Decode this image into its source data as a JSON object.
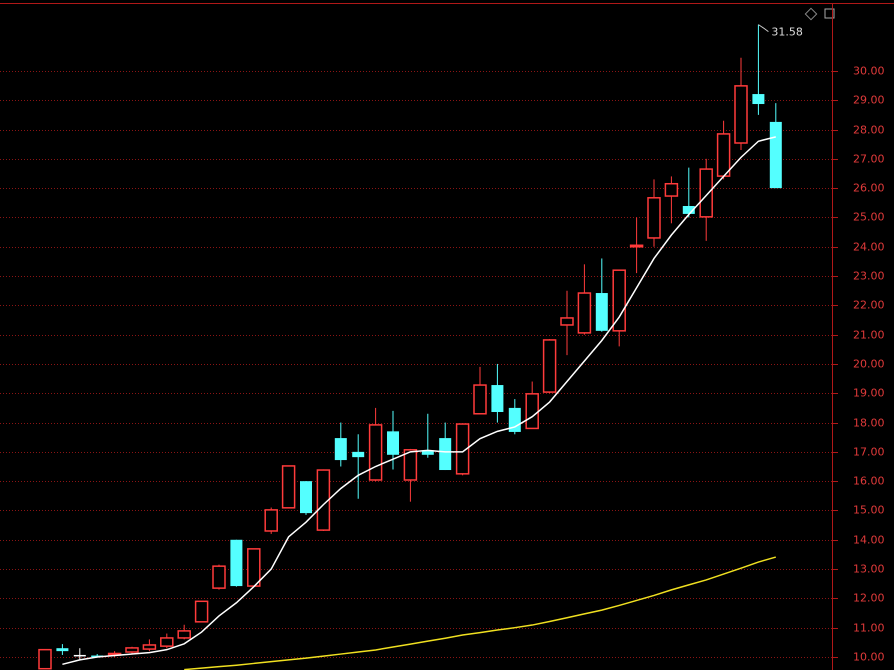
{
  "chart_data": {
    "type": "candlestick",
    "open": [
      9.6,
      10.3,
      10.07,
      10.05,
      10.1,
      10.17,
      10.27,
      10.37,
      10.65,
      11.2,
      12.35,
      14.0,
      12.42,
      14.3,
      15.09,
      16.0,
      14.33,
      17.47,
      17.0,
      16.04,
      17.7,
      16.04,
      17.05,
      17.47,
      16.25,
      18.3,
      19.28,
      18.5,
      17.8,
      19.04,
      21.33,
      21.06,
      22.42,
      21.13,
      24.0,
      24.3,
      25.73,
      25.39,
      25.02,
      26.41,
      27.54,
      29.21,
      28.26
    ],
    "high": [
      10.25,
      10.44,
      10.3,
      10.1,
      10.2,
      10.35,
      10.6,
      10.8,
      11.1,
      11.9,
      13.15,
      14.0,
      13.7,
      15.1,
      16.52,
      16.0,
      16.4,
      18.0,
      17.6,
      18.5,
      18.4,
      17.1,
      18.3,
      18.0,
      17.95,
      19.9,
      20.0,
      18.8,
      19.4,
      20.85,
      22.5,
      23.4,
      23.6,
      23.2,
      25.0,
      26.3,
      26.4,
      26.7,
      27.0,
      28.3,
      30.45,
      31.58,
      28.9
    ],
    "low": [
      9.6,
      10.07,
      9.9,
      9.98,
      10.0,
      10.1,
      10.2,
      10.3,
      10.6,
      11.2,
      12.3,
      12.4,
      12.4,
      14.2,
      15.09,
      14.85,
      14.3,
      16.5,
      15.4,
      16.0,
      16.4,
      15.3,
      16.8,
      16.38,
      16.2,
      18.3,
      18.0,
      17.6,
      17.8,
      19.0,
      20.3,
      21.0,
      21.1,
      20.6,
      23.1,
      24.0,
      24.8,
      25.0,
      24.2,
      26.3,
      27.3,
      28.5,
      26.0
    ],
    "close": [
      10.25,
      10.2,
      10.07,
      10.03,
      10.12,
      10.31,
      10.41,
      10.65,
      10.89,
      11.9,
      13.1,
      12.42,
      13.69,
      15.02,
      16.52,
      14.91,
      16.38,
      16.72,
      16.82,
      17.92,
      16.9,
      17.07,
      16.9,
      16.38,
      17.95,
      19.28,
      18.36,
      17.68,
      18.98,
      20.82,
      21.57,
      22.42,
      21.13,
      23.2,
      24.05,
      25.67,
      26.15,
      25.12,
      26.65,
      27.85,
      29.49,
      28.87,
      26.0
    ],
    "up_color": "#ff3b3b",
    "down_color": "#54ffff",
    "flat_color": "#ffffff",
    "lines": [
      {
        "color": "#ffffff",
        "values": [
          null,
          9.75,
          9.9,
          10.0,
          10.05,
          10.1,
          10.15,
          10.25,
          10.45,
          10.85,
          11.4,
          11.85,
          12.4,
          13.0,
          14.1,
          14.6,
          15.2,
          15.75,
          16.2,
          16.5,
          16.75,
          17.0,
          17.05,
          17.0,
          17.0,
          17.45,
          17.7,
          17.85,
          18.2,
          18.7,
          19.4,
          20.1,
          20.8,
          21.6,
          22.6,
          23.6,
          24.4,
          25.1,
          25.75,
          26.4,
          27.05,
          27.6,
          27.75
        ]
      },
      {
        "color": "#f0e020",
        "values": [
          null,
          null,
          null,
          null,
          null,
          null,
          null,
          null,
          9.57,
          9.62,
          9.67,
          9.72,
          9.78,
          9.84,
          9.9,
          9.96,
          10.03,
          10.1,
          10.17,
          10.24,
          10.34,
          10.44,
          10.54,
          10.64,
          10.75,
          10.83,
          10.92,
          11.0,
          11.09,
          11.21,
          11.34,
          11.47,
          11.6,
          11.76,
          11.93,
          12.1,
          12.29,
          12.46,
          12.63,
          12.83,
          13.03,
          13.24,
          13.41
        ]
      }
    ],
    "ylim": [
      9.556,
      32.42
    ],
    "yticks": [
      {
        "value": 10,
        "label": "10.00"
      },
      {
        "value": 11,
        "label": "11.00"
      },
      {
        "value": 12,
        "label": "12.00"
      },
      {
        "value": 13,
        "label": "13.00"
      },
      {
        "value": 14,
        "label": "14.00"
      },
      {
        "value": 15,
        "label": "15.00"
      },
      {
        "value": 16,
        "label": "16.00"
      },
      {
        "value": 17,
        "label": "17.00"
      },
      {
        "value": 18,
        "label": "18.00"
      },
      {
        "value": 19,
        "label": "19.00"
      },
      {
        "value": 20,
        "label": "20.00"
      },
      {
        "value": 21,
        "label": "21.00"
      },
      {
        "value": 22,
        "label": "22.00"
      },
      {
        "value": 23,
        "label": "23.00"
      },
      {
        "value": 24,
        "label": "24.00"
      },
      {
        "value": 25,
        "label": "25.00"
      },
      {
        "value": 26,
        "label": "26.00"
      },
      {
        "value": 27,
        "label": "27.00"
      },
      {
        "value": 28,
        "label": "28.00"
      },
      {
        "value": 29,
        "label": "29.00"
      },
      {
        "value": 30,
        "label": "30.00"
      }
    ],
    "grid": true,
    "grid_color": "#8a1414",
    "axis_color": "#b01818",
    "tick_label_color": "#e03a3a"
  }
}
